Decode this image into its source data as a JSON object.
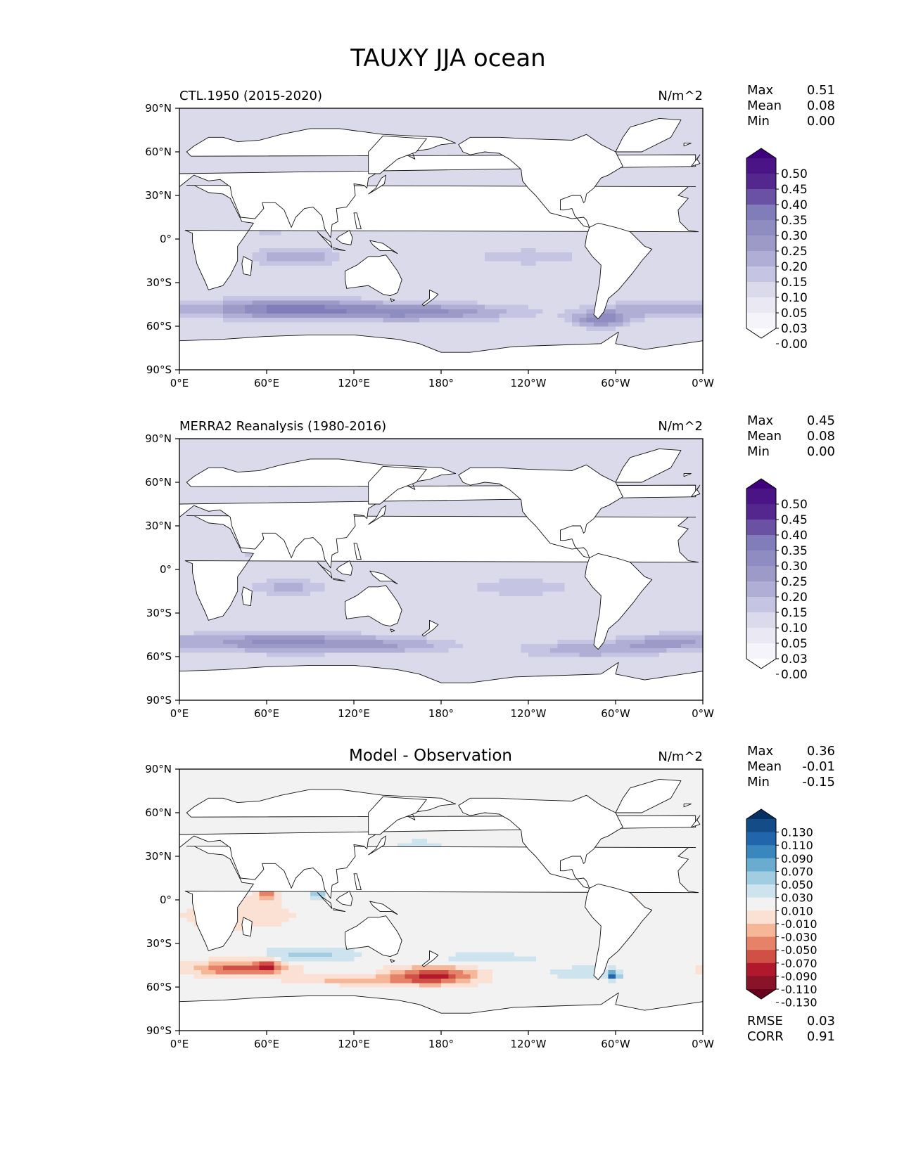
{
  "figure": {
    "title": "TAUXY JJA ocean"
  },
  "chart_data": [
    {
      "type": "heatmap",
      "panel_title": "CTL.1950 (2015-2020)",
      "units": "N/m^2",
      "stats": [
        {
          "label": "Max",
          "value": "0.51"
        },
        {
          "label": "Mean",
          "value": "0.08"
        },
        {
          "label": "Min",
          "value": "0.00"
        }
      ],
      "colorbar": {
        "levels": [
          "0.50",
          "0.45",
          "0.40",
          "0.35",
          "0.30",
          "0.25",
          "0.20",
          "0.15",
          "0.10",
          "0.05",
          "0.03",
          "0.00"
        ],
        "colors": [
          "#3f007d",
          "#4a1486",
          "#54278f",
          "#6a51a3",
          "#807dba",
          "#8f8cc2",
          "#9e9ac8",
          "#b1aed5",
          "#c5c4e2",
          "#dadaeb",
          "#e9e8f3",
          "#f5f4fa",
          "#ffffff"
        ],
        "extend": "both"
      },
      "xticks": [
        "0°E",
        "60°E",
        "120°E",
        "180°",
        "120°W",
        "60°W",
        "0°W"
      ],
      "yticks": [
        "90°N",
        "60°N",
        "30°N",
        "0°",
        "30°S",
        "60°S",
        "90°S"
      ],
      "xlim": [
        0,
        360
      ],
      "ylim": [
        -90,
        90
      ],
      "field": {
        "base": 0.05,
        "blobs": [
          {
            "lon": 75,
            "lat": -48,
            "rlon": 55,
            "rlat": 7,
            "v": 0.28
          },
          {
            "lon": 150,
            "lat": -50,
            "rlon": 45,
            "rlat": 6,
            "v": 0.16
          },
          {
            "lon": 290,
            "lat": -55,
            "rlon": 20,
            "rlat": 6,
            "v": 0.22
          },
          {
            "lon": 330,
            "lat": -48,
            "rlon": 40,
            "rlat": 6,
            "v": 0.14
          },
          {
            "lon": 200,
            "lat": -50,
            "rlon": 50,
            "rlat": 6,
            "v": 0.12
          },
          {
            "lon": 62,
            "lat": 12,
            "rlon": 12,
            "rlat": 7,
            "v": 0.22
          },
          {
            "lon": 80,
            "lat": -12,
            "rlon": 30,
            "rlat": 6,
            "v": 0.16
          },
          {
            "lon": 200,
            "lat": 18,
            "rlon": 40,
            "rlat": 6,
            "v": 0.08
          },
          {
            "lon": 240,
            "lat": -12,
            "rlon": 40,
            "rlat": 6,
            "v": 0.09
          },
          {
            "lon": 320,
            "lat": 18,
            "rlon": 25,
            "rlat": 6,
            "v": 0.07
          },
          {
            "lon": 170,
            "lat": 45,
            "rlon": 40,
            "rlat": 5,
            "v": 0.04
          }
        ]
      }
    },
    {
      "type": "heatmap",
      "panel_title": "MERRA2 Reanalysis (1980-2016)",
      "units": "N/m^2",
      "stats": [
        {
          "label": "Max",
          "value": "0.45"
        },
        {
          "label": "Mean",
          "value": "0.08"
        },
        {
          "label": "Min",
          "value": "0.00"
        }
      ],
      "colorbar": {
        "levels": [
          "0.50",
          "0.45",
          "0.40",
          "0.35",
          "0.30",
          "0.25",
          "0.20",
          "0.15",
          "0.10",
          "0.05",
          "0.03",
          "0.00"
        ],
        "colors": [
          "#3f007d",
          "#4a1486",
          "#54278f",
          "#6a51a3",
          "#807dba",
          "#8f8cc2",
          "#9e9ac8",
          "#b1aed5",
          "#c5c4e2",
          "#dadaeb",
          "#e9e8f3",
          "#f5f4fa",
          "#ffffff"
        ],
        "extend": "both"
      },
      "xticks": [
        "0°E",
        "60°E",
        "120°E",
        "180°",
        "120°W",
        "60°W",
        "0°W"
      ],
      "yticks": [
        "90°N",
        "60°N",
        "30°N",
        "0°",
        "30°S",
        "60°S",
        "90°S"
      ],
      "xlim": [
        0,
        360
      ],
      "ylim": [
        -90,
        90
      ],
      "field": {
        "base": 0.05,
        "blobs": [
          {
            "lon": 70,
            "lat": -50,
            "rlon": 60,
            "rlat": 7,
            "v": 0.22
          },
          {
            "lon": 150,
            "lat": -52,
            "rlon": 45,
            "rlat": 6,
            "v": 0.12
          },
          {
            "lon": 280,
            "lat": -55,
            "rlon": 45,
            "rlat": 6,
            "v": 0.14
          },
          {
            "lon": 335,
            "lat": -50,
            "rlon": 35,
            "rlat": 6,
            "v": 0.14
          },
          {
            "lon": 58,
            "lat": 15,
            "rlon": 10,
            "rlat": 7,
            "v": 0.26
          },
          {
            "lon": 75,
            "lat": -12,
            "rlon": 28,
            "rlat": 6,
            "v": 0.12
          },
          {
            "lon": 200,
            "lat": 18,
            "rlon": 40,
            "rlat": 6,
            "v": 0.09
          },
          {
            "lon": 235,
            "lat": -12,
            "rlon": 40,
            "rlat": 6,
            "v": 0.1
          },
          {
            "lon": 320,
            "lat": 18,
            "rlon": 25,
            "rlat": 6,
            "v": 0.06
          }
        ]
      }
    },
    {
      "type": "heatmap",
      "panel_title": "Model - Observation",
      "units": "N/m^2",
      "stats": [
        {
          "label": "Max",
          "value": "0.36"
        },
        {
          "label": "Mean",
          "value": "-0.01"
        },
        {
          "label": "Min",
          "value": "-0.15"
        }
      ],
      "extra_stats": [
        {
          "label": "RMSE",
          "value": "0.03"
        },
        {
          "label": "CORR",
          "value": "0.91"
        }
      ],
      "colorbar": {
        "levels": [
          "0.130",
          "0.110",
          "0.090",
          "0.070",
          "0.050",
          "0.030",
          "0.010",
          "-0.010",
          "-0.030",
          "-0.050",
          "-0.070",
          "-0.090",
          "-0.110",
          "-0.130"
        ],
        "colors": [
          "#053061",
          "#134c87",
          "#2166ac",
          "#3a87bd",
          "#6aacd0",
          "#a1cde3",
          "#cde3ee",
          "#f2f2f2",
          "#fbe1d3",
          "#f6b798",
          "#e58267",
          "#d15045",
          "#b2182b",
          "#891328",
          "#67001f"
        ],
        "extend": "both"
      },
      "xticks": [
        "0°E",
        "60°E",
        "120°E",
        "180°",
        "120°W",
        "60°W",
        "0°W"
      ],
      "yticks": [
        "90°N",
        "60°N",
        "30°N",
        "0°",
        "30°S",
        "60°S",
        "90°S"
      ],
      "xlim": [
        0,
        360
      ],
      "ylim": [
        -90,
        90
      ],
      "field": {
        "base": 0,
        "blobs": [
          {
            "lon": 40,
            "lat": -47,
            "rlon": 32,
            "rlat": 5,
            "v": -0.08
          },
          {
            "lon": 60,
            "lat": -45,
            "rlon": 8,
            "rlat": 4,
            "v": -0.06
          },
          {
            "lon": 175,
            "lat": -52,
            "rlon": 28,
            "rlat": 6,
            "v": -0.1
          },
          {
            "lon": 120,
            "lat": -55,
            "rlon": 40,
            "rlat": 3,
            "v": -0.04
          },
          {
            "lon": 60,
            "lat": 5,
            "rlon": 8,
            "rlat": 6,
            "v": -0.06
          },
          {
            "lon": 40,
            "lat": -10,
            "rlon": 40,
            "rlat": 10,
            "v": -0.025
          },
          {
            "lon": 215,
            "lat": 13,
            "rlon": 60,
            "rlat": 6,
            "v": -0.02
          },
          {
            "lon": 300,
            "lat": 0,
            "rlon": 20,
            "rlat": 6,
            "v": -0.02
          },
          {
            "lon": 90,
            "lat": -38,
            "rlon": 30,
            "rlat": 5,
            "v": 0.04
          },
          {
            "lon": 210,
            "lat": -40,
            "rlon": 40,
            "rlat": 4,
            "v": 0.02
          },
          {
            "lon": 280,
            "lat": -50,
            "rlon": 25,
            "rlat": 4,
            "v": 0.025
          },
          {
            "lon": 298,
            "lat": -52,
            "rlon": 4,
            "rlat": 3,
            "v": 0.1
          },
          {
            "lon": 165,
            "lat": 38,
            "rlon": 35,
            "rlat": 6,
            "v": 0.012
          },
          {
            "lon": 95,
            "lat": 5,
            "rlon": 6,
            "rlat": 4,
            "v": 0.05
          }
        ]
      }
    }
  ]
}
